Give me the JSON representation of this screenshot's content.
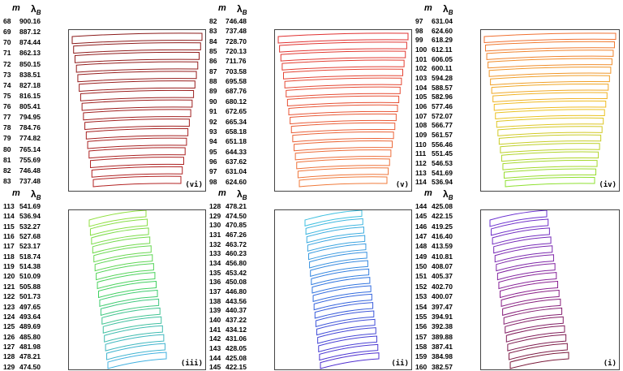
{
  "headers": {
    "m": "m",
    "lambda": "λ",
    "lambda_sub": "B"
  },
  "panels": [
    {
      "tag": "(vi)",
      "colors": [
        "#8b1a1a",
        "#b22222"
      ],
      "rows": [
        [
          "68",
          "900.16"
        ],
        [
          "69",
          "887.12"
        ],
        [
          "70",
          "874.44"
        ],
        [
          "71",
          "862.13"
        ],
        [
          "72",
          "850.15"
        ],
        [
          "73",
          "838.51"
        ],
        [
          "74",
          "827.18"
        ],
        [
          "75",
          "816.15"
        ],
        [
          "76",
          "805.41"
        ],
        [
          "77",
          "794.95"
        ],
        [
          "78",
          "784.76"
        ],
        [
          "79",
          "774.82"
        ],
        [
          "80",
          "765.14"
        ],
        [
          "81",
          "755.69"
        ],
        [
          "82",
          "746.48"
        ],
        [
          "83",
          "737.48"
        ]
      ]
    },
    {
      "tag": "(v)",
      "colors": [
        "#e03030",
        "#f07a3a"
      ],
      "rows": [
        [
          "82",
          "746.48"
        ],
        [
          "83",
          "737.48"
        ],
        [
          "84",
          "728.70"
        ],
        [
          "85",
          "720.13"
        ],
        [
          "86",
          "711.76"
        ],
        [
          "87",
          "703.58"
        ],
        [
          "88",
          "695.58"
        ],
        [
          "89",
          "687.76"
        ],
        [
          "90",
          "680.12"
        ],
        [
          "91",
          "672.65"
        ],
        [
          "92",
          "665.34"
        ],
        [
          "93",
          "658.18"
        ],
        [
          "94",
          "651.18"
        ],
        [
          "95",
          "644.33"
        ],
        [
          "96",
          "637.62"
        ],
        [
          "97",
          "631.04"
        ],
        [
          "98",
          "624.60"
        ]
      ]
    },
    {
      "tag": "(iv)",
      "colors": [
        "#f07030",
        "#f0c020",
        "#8ee030"
      ],
      "rows": [
        [
          "97",
          "631.04"
        ],
        [
          "98",
          "624.60"
        ],
        [
          "99",
          "618.29"
        ],
        [
          "100",
          "612.11"
        ],
        [
          "101",
          "606.05"
        ],
        [
          "102",
          "600.11"
        ],
        [
          "103",
          "594.28"
        ],
        [
          "104",
          "588.57"
        ],
        [
          "105",
          "582.96"
        ],
        [
          "106",
          "577.46"
        ],
        [
          "107",
          "572.07"
        ],
        [
          "108",
          "566.77"
        ],
        [
          "109",
          "561.57"
        ],
        [
          "110",
          "556.46"
        ],
        [
          "111",
          "551.45"
        ],
        [
          "112",
          "546.53"
        ],
        [
          "113",
          "541.69"
        ],
        [
          "114",
          "536.94"
        ]
      ]
    },
    {
      "tag": "(iii)",
      "colors": [
        "#90e040",
        "#40d060",
        "#40b0e0"
      ],
      "rows": [
        [
          "113",
          "541.69"
        ],
        [
          "114",
          "536.94"
        ],
        [
          "115",
          "532.27"
        ],
        [
          "116",
          "527.68"
        ],
        [
          "117",
          "523.17"
        ],
        [
          "118",
          "518.74"
        ],
        [
          "119",
          "514.38"
        ],
        [
          "120",
          "510.09"
        ],
        [
          "121",
          "505.88"
        ],
        [
          "122",
          "501.73"
        ],
        [
          "123",
          "497.65"
        ],
        [
          "124",
          "493.64"
        ],
        [
          "125",
          "489.69"
        ],
        [
          "126",
          "485.80"
        ],
        [
          "127",
          "481.98"
        ],
        [
          "128",
          "478.21"
        ],
        [
          "129",
          "474.50"
        ]
      ]
    },
    {
      "tag": "(ii)",
      "colors": [
        "#40c0e0",
        "#3070e0",
        "#5030d0"
      ],
      "rows": [
        [
          "128",
          "478.21"
        ],
        [
          "129",
          "474.50"
        ],
        [
          "130",
          "470.85"
        ],
        [
          "131",
          "467.26"
        ],
        [
          "132",
          "463.72"
        ],
        [
          "133",
          "460.23"
        ],
        [
          "134",
          "456.80"
        ],
        [
          "135",
          "453.42"
        ],
        [
          "136",
          "450.08"
        ],
        [
          "137",
          "446.80"
        ],
        [
          "138",
          "443.56"
        ],
        [
          "139",
          "440.37"
        ],
        [
          "140",
          "437.22"
        ],
        [
          "141",
          "434.12"
        ],
        [
          "142",
          "431.06"
        ],
        [
          "143",
          "428.05"
        ],
        [
          "144",
          "425.08"
        ],
        [
          "145",
          "422.15"
        ]
      ]
    },
    {
      "tag": "(i)",
      "colors": [
        "#6a30d0",
        "#8a2090",
        "#7a1a3a"
      ],
      "rows": [
        [
          "144",
          "425.08"
        ],
        [
          "145",
          "422.15"
        ],
        [
          "146",
          "419.25"
        ],
        [
          "147",
          "416.40"
        ],
        [
          "148",
          "413.59"
        ],
        [
          "149",
          "410.81"
        ],
        [
          "150",
          "408.07"
        ],
        [
          "151",
          "405.37"
        ],
        [
          "152",
          "402.70"
        ],
        [
          "153",
          "400.07"
        ],
        [
          "154",
          "397.47"
        ],
        [
          "155",
          "394.91"
        ],
        [
          "156",
          "392.38"
        ],
        [
          "157",
          "389.88"
        ],
        [
          "158",
          "387.41"
        ],
        [
          "159",
          "384.98"
        ],
        [
          "160",
          "382.57"
        ]
      ]
    }
  ]
}
